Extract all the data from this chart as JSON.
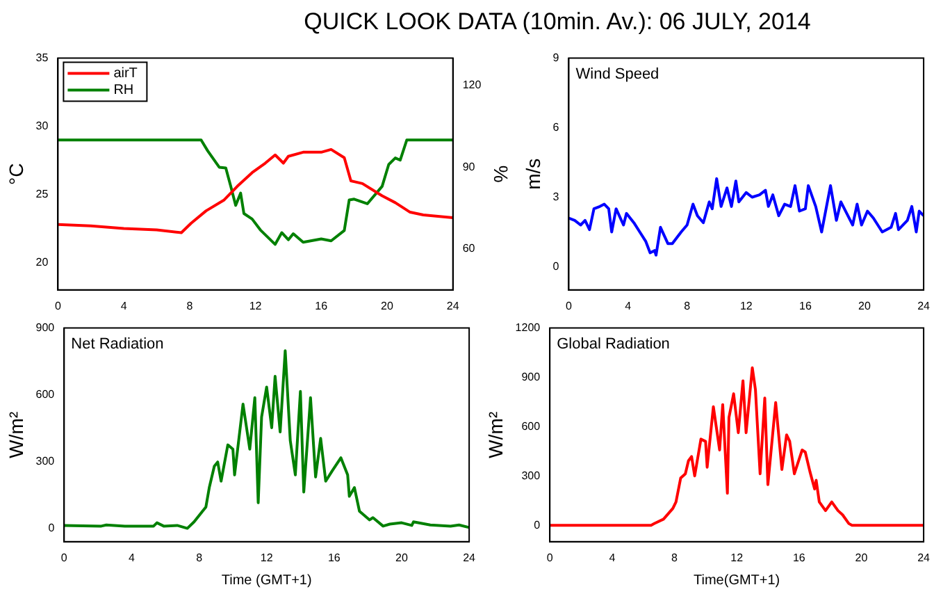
{
  "chart_data": [
    {
      "type": "line",
      "title": "QUICK LOOK DATA (10min. Av.): 06 JULY, 2014",
      "ylabel": "°C",
      "y2label": "%",
      "legend": "top left",
      "xlim": [
        0,
        24
      ],
      "xticks": [
        0,
        4,
        8,
        12,
        16,
        20,
        24
      ],
      "ylim": [
        18,
        35
      ],
      "yticks": [
        20,
        25,
        30,
        35
      ],
      "y2lim": [
        45,
        130
      ],
      "y2ticks": [
        60,
        90,
        120
      ],
      "series": [
        {
          "name": "airT",
          "color": "#ff0000",
          "x": [
            0,
            2,
            4,
            6,
            7.5,
            8.1,
            9,
            10.1,
            10.9,
            11.8,
            12.6,
            13.2,
            13.7,
            14,
            14.9,
            16,
            16.6,
            17.4,
            17.8,
            18.5,
            19.7,
            20.5,
            21.4,
            22.2,
            24
          ],
          "values": [
            22.8,
            22.7,
            22.5,
            22.4,
            22.2,
            22.9,
            23.8,
            24.6,
            25.6,
            26.6,
            27.3,
            27.9,
            27.3,
            27.8,
            28.1,
            28.1,
            28.3,
            27.7,
            26,
            25.8,
            24.9,
            24.4,
            23.7,
            23.5,
            23.3
          ]
        },
        {
          "name": "RH",
          "color": "#008000",
          "axis": "y2",
          "x": [
            0,
            8.7,
            9.1,
            9.8,
            10.2,
            10.5,
            10.8,
            11.1,
            11.3,
            11.8,
            12.3,
            13.2,
            13.6,
            14,
            14.3,
            14.9,
            16,
            16.6,
            17.4,
            17.7,
            18,
            18.8,
            19.7,
            20.1,
            20.5,
            20.8,
            21.2,
            24
          ],
          "values": [
            100,
            100,
            96,
            90,
            89.7,
            83,
            76,
            80.5,
            73,
            71,
            67,
            61.7,
            66,
            63.4,
            65.6,
            62.5,
            63.7,
            63,
            66.8,
            78,
            78.3,
            76.6,
            83,
            91,
            93.4,
            92.6,
            100,
            100
          ]
        }
      ]
    },
    {
      "type": "line",
      "title": "Wind Speed",
      "ylabel": "m/s",
      "xlim": [
        0,
        24
      ],
      "xticks": [
        0,
        4,
        8,
        12,
        16,
        20,
        24
      ],
      "ylim": [
        -1,
        9
      ],
      "yticks": [
        0,
        3,
        6,
        9
      ],
      "series": [
        {
          "color": "#0000ff",
          "x": [
            0,
            0.4,
            0.8,
            1.1,
            1.4,
            1.7,
            2.1,
            2.4,
            2.7,
            2.9,
            3.2,
            3.7,
            3.9,
            4.4,
            4.8,
            5.2,
            5.5,
            5.8,
            5.9,
            6.2,
            6.7,
            7,
            7.6,
            8,
            8.4,
            8.7,
            9.1,
            9.5,
            9.7,
            10,
            10.3,
            10.7,
            11,
            11.3,
            11.5,
            12,
            12.4,
            12.9,
            13.3,
            13.5,
            13.8,
            14.2,
            14.6,
            15,
            15.3,
            15.6,
            16,
            16.2,
            16.7,
            17.1,
            17.7,
            18.1,
            18.4,
            18.8,
            19.2,
            19.5,
            19.8,
            20.2,
            20.6,
            21.2,
            21.8,
            22.1,
            22.3,
            22.9,
            23.2,
            23.5,
            23.7,
            24
          ],
          "values": [
            2.1,
            2,
            1.8,
            2,
            1.6,
            2.5,
            2.6,
            2.7,
            2.5,
            1.5,
            2.5,
            1.8,
            2.3,
            1.9,
            1.5,
            1.1,
            0.6,
            0.7,
            0.5,
            1.7,
            1,
            1,
            1.5,
            1.8,
            2.7,
            2.2,
            1.9,
            2.8,
            2.5,
            3.8,
            2.6,
            3.4,
            2.6,
            3.7,
            2.8,
            3.2,
            3,
            3.1,
            3.3,
            2.6,
            3.1,
            2.2,
            2.7,
            2.6,
            3.5,
            2.4,
            2.5,
            3.5,
            2.6,
            1.5,
            3.5,
            2,
            2.8,
            2.3,
            1.8,
            2.7,
            1.8,
            2.4,
            2.1,
            1.5,
            1.7,
            2.3,
            1.6,
            2,
            2.6,
            1.5,
            2.4,
            2.2
          ]
        }
      ]
    },
    {
      "type": "line",
      "title": "Net Radiation",
      "xlabel": "Time (GMT+1)",
      "ylabel": "W/m²",
      "xlim": [
        0,
        24
      ],
      "xticks": [
        0,
        4,
        8,
        12,
        16,
        20,
        24
      ],
      "ylim": [
        -60,
        900
      ],
      "yticks": [
        0,
        300,
        600,
        900
      ],
      "series": [
        {
          "color": "#008000",
          "x": [
            0,
            2.2,
            2.5,
            3.6,
            5.3,
            5.5,
            5.9,
            6.7,
            7.3,
            7.7,
            8.2,
            8.4,
            8.6,
            8.9,
            9.1,
            9.3,
            9.7,
            10,
            10.1,
            10.6,
            11,
            11.3,
            11.5,
            11.7,
            12,
            12.3,
            12.5,
            12.8,
            13.1,
            13.4,
            13.7,
            14,
            14.2,
            14.6,
            14.9,
            15.2,
            15.5,
            15.9,
            16.4,
            16.8,
            16.9,
            17.2,
            17.5,
            18.1,
            18.3,
            18.9,
            19.3,
            20,
            20.6,
            20.7,
            21.7,
            22.9,
            23.4,
            24
          ],
          "values": [
            13,
            10,
            15,
            10,
            10,
            25,
            10,
            13,
            0,
            29,
            77,
            96,
            183,
            279,
            298,
            212,
            375,
            356,
            240,
            558,
            356,
            587,
            115,
            500,
            635,
            452,
            683,
            433,
            798,
            394,
            240,
            615,
            163,
            587,
            231,
            404,
            212,
            260,
            317,
            240,
            144,
            183,
            77,
            38,
            48,
            10,
            19,
            25,
            13,
            29,
            15,
            10,
            15,
            4
          ]
        }
      ]
    },
    {
      "type": "line",
      "title": "Global Radiation",
      "xlabel": "Time(GMT+1)",
      "ylabel": "W/m²",
      "xlim": [
        0,
        24
      ],
      "xticks": [
        0,
        4,
        8,
        12,
        16,
        20,
        24
      ],
      "ylim": [
        -100,
        1200
      ],
      "yticks": [
        0,
        300,
        600,
        900,
        1200
      ],
      "series": [
        {
          "color": "#ff0000",
          "x": [
            0,
            6.5,
            6.7,
            7.3,
            7.9,
            8.1,
            8.4,
            8.7,
            8.9,
            9.1,
            9.3,
            9.7,
            10,
            10.1,
            10.5,
            10.9,
            11.1,
            11.4,
            11.5,
            11.8,
            12.1,
            12.4,
            12.6,
            13,
            13.2,
            13.5,
            13.8,
            14,
            14.5,
            14.9,
            15.2,
            15.4,
            15.7,
            16.2,
            16.4,
            16.7,
            17,
            17.1,
            17.3,
            17.7,
            18.1,
            18.5,
            18.8,
            19.2,
            19.4,
            24
          ],
          "values": [
            0,
            0,
            10,
            37,
            103,
            142,
            287,
            313,
            392,
            418,
            300,
            524,
            510,
            353,
            721,
            458,
            734,
            195,
            655,
            800,
            563,
            879,
            563,
            958,
            826,
            313,
            774,
            247,
            747,
            339,
            550,
            511,
            313,
            458,
            445,
            326,
            221,
            274,
            142,
            89,
            142,
            89,
            63,
            10,
            0,
            0
          ]
        }
      ]
    }
  ]
}
